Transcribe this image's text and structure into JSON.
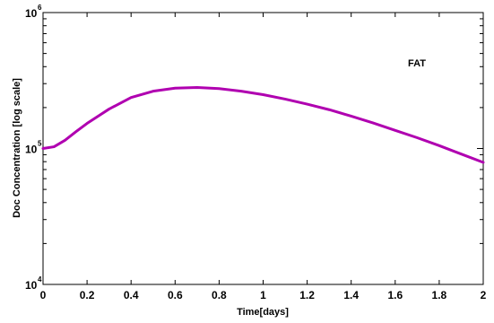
{
  "chart_data": {
    "type": "line",
    "xlabel": "Time[days]",
    "ylabel": "Doc Concentration [log scale]",
    "annotation": "FAT",
    "xlim": [
      0,
      2
    ],
    "ylim": [
      10000,
      1000000
    ],
    "yscale": "log",
    "grid": false,
    "x_ticks": [
      "0",
      "0.2",
      "0.4",
      "0.6",
      "0.8",
      "1",
      "1.2",
      "1.4",
      "1.6",
      "1.8",
      "2"
    ],
    "y_ticks": [
      {
        "base": "10",
        "exp": "4"
      },
      {
        "base": "10",
        "exp": "5"
      },
      {
        "base": "10",
        "exp": "6"
      }
    ],
    "series": [
      {
        "color": "#b000b0",
        "x": [
          0,
          0.05,
          0.1,
          0.15,
          0.2,
          0.3,
          0.4,
          0.5,
          0.6,
          0.7,
          0.8,
          0.9,
          1.0,
          1.1,
          1.2,
          1.3,
          1.4,
          1.5,
          1.6,
          1.7,
          1.8,
          1.9,
          2.0
        ],
        "y": [
          100000,
          103000,
          115000,
          133000,
          153000,
          195000,
          237000,
          264000,
          278000,
          281000,
          276000,
          264000,
          249000,
          231000,
          212000,
          193000,
          173000,
          154000,
          136000,
          120000,
          105000,
          91000,
          79000
        ]
      }
    ]
  }
}
